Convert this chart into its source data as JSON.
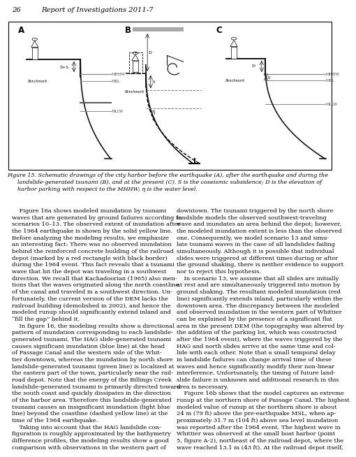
{
  "page_header_num": "26",
  "page_header_title": "Report of Investigations 2011-7",
  "figure_caption_line1": "Figure 15. Schematic drawings of the city harbor before the earthquake (A), after the earthquake and during the",
  "figure_caption_line2": "      landslide-generated tsunami (B), and at the present (C). S is the coseismic subsidence; D is the elevation of",
  "figure_caption_line3": "      harbor parking with respect to the MHHW; η is the water level.",
  "body_text_left": "    Figure 16a shows modeled inundation by tsunami\nwaves that are generated by ground failures according to\nscenarios 10–13. The observed extent of inundation after\nthe 1964 earthquake is shown by the solid yellow line.\nBefore analyzing the modeling results, we emphasize\nan interesting fact: There was no observed inundation\nbehind the reinforced concrete building of the railroad\ndepot (marked by a red rectangle with black border)\nduring the 1964 event. This fact reveals that a tsunami\nwave that hit the depot was traveling in a southwest\ndirection. We recall that Kachadoorian (1965) also men-\ntions that the waves originated along the north coastline\nof the canal and traveled in a southwest direction. Un-\nfortunately, the current version of the DEM lacks the\nrailroad building (demolished in 2002), and hence the\nmodeled runup should significantly extend inland and\n“fill the gap” behind it.\n    In figure 16, the modeling results show a directional\npattern of inundation corresponding to each landslide-\ngenerated tsunami. The HAG slide-generated tsunami\ncauses significant inundation (blue line) at the head\nof Passage Canal and the western side of the Whit-\ntier downtown, whereas the inundation by north shore\nlandslide-generated tsunami (green line) is localized at\nthe eastern part of the town, particularly near the rail-\nroad depot. Note that the energy of the Billings Creek\nlandslide-generated tsunami is primarily directed toward\nthe south coast and quickly dissipates in the direction\nof the harbor area. Therefore this landslide-generated\ntsunami causes an insignificant inundation (light blue\nline) beyond the coastline (dashed yellow line) at the\ntime of the 1964 earthquake.\n    Taking into account that the HAG landslide con-\nfiguration is roughly approximated by the bathymetry\ndifference profiles, the modeling results show a good\ncomparison with observations in the western part of",
  "body_text_right": "downtown. The tsunami triggered by the north shore\nlandslide models the observed southwest-traveling\nwave and inundates an area behind the depot; however,\nthe modeled inundation extent is less than the observed\none. Consequently, we model scenario 13 and simu-\nlate tsunami waves in the case of all landslides failing\nsimultaneously. Although it is possible that individual\nslides were triggered at different times during or after\nthe ground shaking, there is neither evidence to support\nnor to reject this hypothesis.\n    In scenario 13, we assume that all slides are initially\nat rest and are simultaneously triggered into motion by\nground shaking. The resultant modeled inundation (red\nline) significantly extends inland, particularly within the\ndowntown area. The discrepancy between the modeled\nand observed inundation in the western part of Whittier\ncan be explained by the presence of a significant flat\narea in the present DEM (the topography was altered by\nthe addition of the parking lot, which was constructed\nafter the 1964 event), where the waves triggered by the\nHAG and north slides arrive at the same time and col-\nlide with each other. Note that a small temporal delay\nin landslide failures can change arrival time of these\nwaves and hence significantly modify their non-linear\ninterference. Unfortunately, the timing of future land-\nslide failure is unknown and additional research in this\narea is necessary.\n    Figure 16b shows that the model captures an extreme\nrunup at the northern shore of Passage Canal. The highest\nmodeled value of runup at the northern shore is about\n24 m (79 ft) above the pre-earthquake MSL, when ap-\nproximately 31.7 m (104 ft) above sea level inundation\nwas reported after the 1964 event. The highest wave in\nWhittier was observed at the small boat harbor (point\n5, figure A-2), northeast of the railroad depot, where the\nwave reached 13.1 m (43 ft). At the railroad depot itself,"
}
